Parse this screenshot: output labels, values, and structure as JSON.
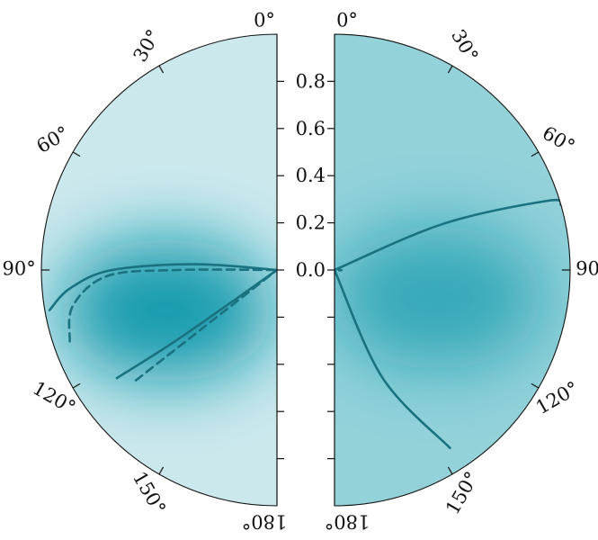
{
  "chart_data": [
    {
      "type": "heatmap",
      "projection": "polar half-disk (left)",
      "theta_ticks": [
        "0°",
        "30°",
        "60°",
        "90°",
        "120°",
        "150°",
        "180°"
      ],
      "colormap": [
        "#f4fbfc",
        "#0e98ab"
      ],
      "hotspot": {
        "theta_deg": 110,
        "r": 0.5,
        "intensity": 0.95
      },
      "contours": [
        {
          "style": "solid",
          "points": [
            [
              100,
              0.98
            ],
            [
              95,
              0.88
            ],
            [
              90,
              0.7
            ],
            [
              86,
              0.35
            ],
            [
              88,
              0.0
            ]
          ]
        },
        {
          "style": "dashed",
          "points": [
            [
              109,
              0.93
            ],
            [
              100,
              0.88
            ],
            [
              92,
              0.72
            ],
            [
              90,
              0.42
            ],
            [
              91,
              0.0
            ]
          ]
        },
        {
          "style": "solid",
          "points": [
            [
              124,
              0.82
            ],
            [
              125,
              0.5
            ],
            [
              129,
              0.0
            ]
          ]
        },
        {
          "style": "dashed",
          "points": [
            [
              128,
              0.76
            ],
            [
              128,
              0.4
            ],
            [
              132,
              0.0
            ]
          ]
        }
      ]
    },
    {
      "type": "heatmap",
      "projection": "polar half-disk (right)",
      "theta_ticks": [
        "0°",
        "30°",
        "60°",
        "90°",
        "120°",
        "150°",
        "180°"
      ],
      "colormap": [
        "#f4fbfc",
        "#0e98ab"
      ],
      "hotspot": {
        "theta_deg": 105,
        "r": 0.45,
        "intensity": 0.7
      },
      "contours": [
        {
          "style": "solid",
          "points": [
            [
              66,
              0.0
            ],
            [
              67,
              0.5
            ],
            [
              72,
              0.95
            ],
            [
              74,
              1.0
            ]
          ]
        },
        {
          "style": "solid",
          "points": [
            [
              161,
              0.0
            ],
            [
              156,
              0.5
            ],
            [
              147,
              0.9
            ]
          ]
        },
        {
          "style": "dashed",
          "points": [
            [
              88,
              0.02
            ],
            [
              92,
              0.03
            ],
            [
              94,
              0.02
            ]
          ]
        }
      ]
    }
  ],
  "radial_axis": {
    "ticks": [
      "0.0",
      "0.2",
      "0.4",
      "0.6",
      "0.8"
    ],
    "values": [
      0.0,
      0.2,
      0.4,
      0.6,
      0.8
    ],
    "range": [
      0,
      1
    ]
  },
  "colors": {
    "contour": "#1a7280",
    "axis": "#111111"
  }
}
